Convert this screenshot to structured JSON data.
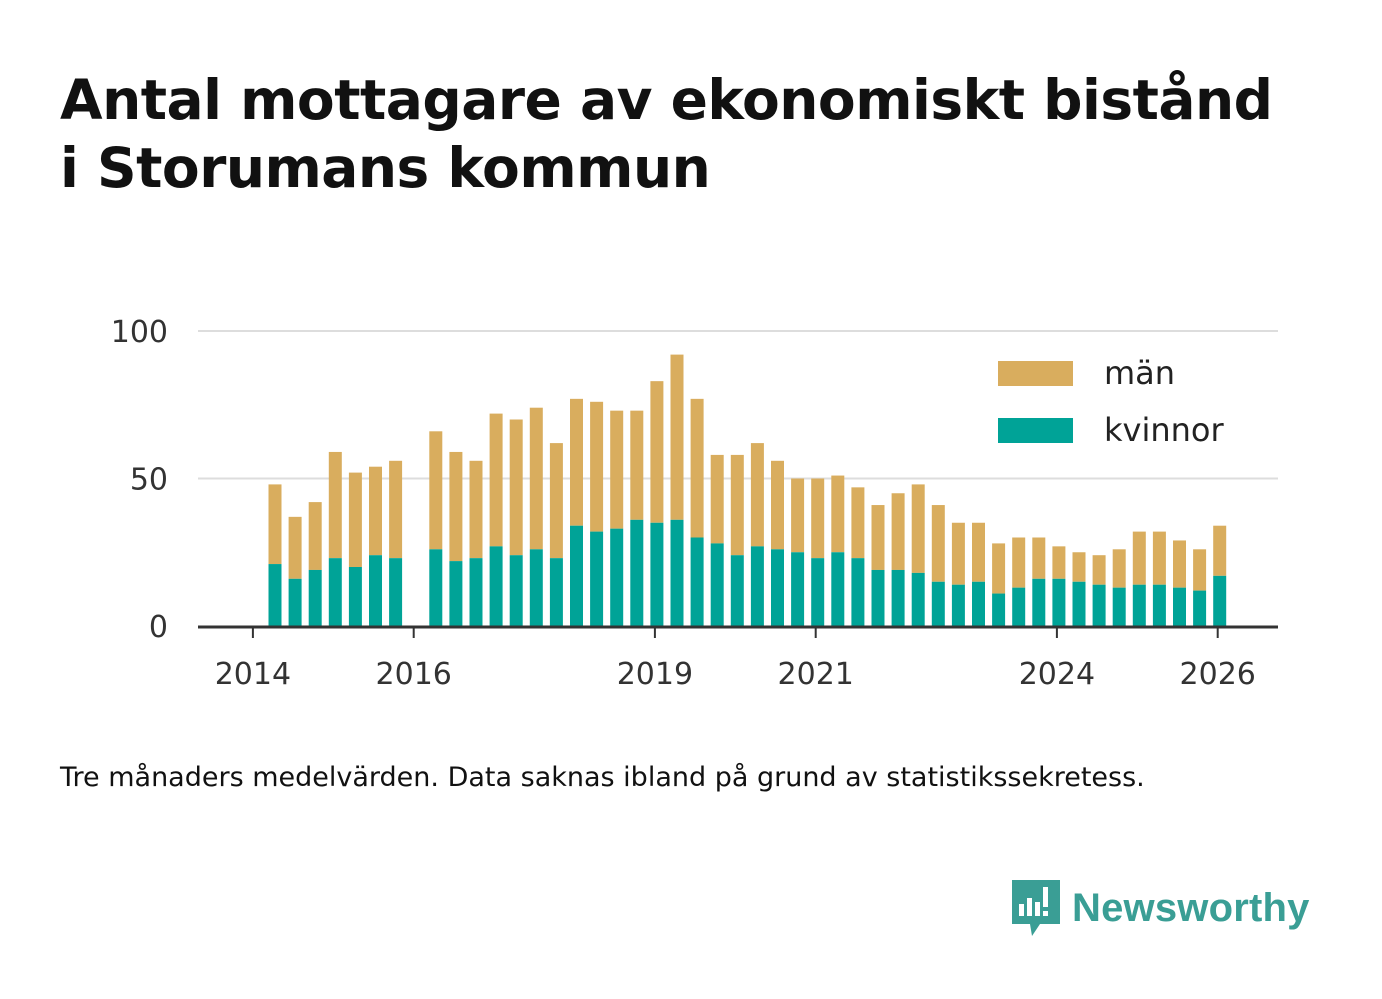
{
  "title_line1": "Antal mottagare av ekonomiskt bistånd",
  "title_line2": "i Storumans kommun",
  "note": "Tre månaders medelvärden. Data saknas ibland på grund av statistikssekretess.",
  "brand": "Newsworthy",
  "colors": {
    "man": "#d9ad5e",
    "kvinnor": "#00a397",
    "grid": "#dddddd",
    "axis": "#333333",
    "brand": "#3a9e95"
  },
  "chart_data": {
    "type": "bar",
    "stacked": true,
    "title": "Antal mottagare av ekonomiskt bistånd i Storumans kommun",
    "ylim": [
      0,
      100
    ],
    "yticks": [
      0,
      50,
      100
    ],
    "xticks": [
      {
        "label": "2014",
        "index": -1
      },
      {
        "label": "2016",
        "index": 7
      },
      {
        "label": "2019",
        "index": 19
      },
      {
        "label": "2021",
        "index": 27
      },
      {
        "label": "2024",
        "index": 39
      },
      {
        "label": "2026",
        "index": 47
      }
    ],
    "legend": [
      "män",
      "kvinnor"
    ],
    "series": [
      {
        "name": "kvinnor",
        "values": [
          21,
          16,
          19,
          23,
          20,
          24,
          23,
          null,
          26,
          22,
          23,
          27,
          24,
          26,
          23,
          34,
          32,
          33,
          36,
          35,
          36,
          30,
          28,
          24,
          27,
          26,
          25,
          23,
          25,
          23,
          19,
          19,
          18,
          15,
          14,
          15,
          11,
          13,
          16,
          16,
          15,
          14,
          13,
          14,
          14,
          13,
          12,
          17
        ]
      },
      {
        "name": "män",
        "values": [
          27,
          21,
          23,
          36,
          32,
          30,
          33,
          null,
          40,
          37,
          33,
          45,
          46,
          48,
          39,
          43,
          44,
          40,
          37,
          48,
          56,
          47,
          30,
          34,
          35,
          30,
          25,
          27,
          26,
          24,
          22,
          26,
          30,
          26,
          21,
          20,
          17,
          17,
          14,
          11,
          10,
          10,
          13,
          18,
          18,
          16,
          14,
          17
        ]
      }
    ]
  }
}
